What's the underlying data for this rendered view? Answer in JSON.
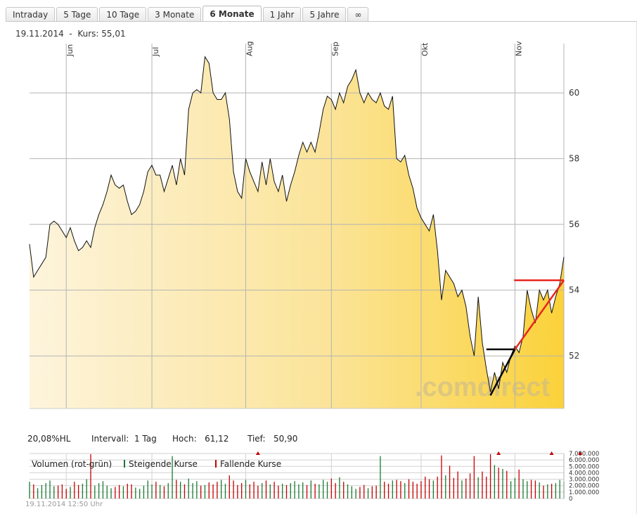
{
  "tabs": [
    "Intraday",
    "5 Tage",
    "10 Tage",
    "3 Monate",
    "6 Monate",
    "1 Jahr",
    "5 Jahre",
    "∞"
  ],
  "active_tab": "6 Monate",
  "header": {
    "date": "19.11.2014",
    "separator": "-",
    "kurs_label": "Kurs:",
    "kurs_value": "55,01"
  },
  "stats": {
    "range": "20,08%HL",
    "interval_label": "Intervall:",
    "interval_value": "1 Tag",
    "high_label": "Hoch:",
    "high_value": "61,12",
    "low_label": "Tief:",
    "low_value": "50,90"
  },
  "volume_legend": {
    "title": "Volumen (rot-grün)",
    "rising": "Steigende Kurse",
    "falling": "Fallende Kurse"
  },
  "timestamp": "19.11.2014 12:50 Uhr",
  "watermark": ".comdirect",
  "colors": {
    "rising": "#1a7a32",
    "falling": "#c40000",
    "fill_light": "#fdf4dc",
    "fill_dark": "#fbd23a",
    "line": "#111111"
  },
  "chart_data": [
    {
      "type": "area",
      "x": [
        "2014-05-20",
        "2014-05-21",
        "2014-05-22",
        "2014-05-23",
        "2014-05-26",
        "2014-05-27",
        "2014-05-28",
        "2014-05-29",
        "2014-05-30",
        "2014-06-02",
        "2014-06-03",
        "2014-06-04",
        "2014-06-05",
        "2014-06-06",
        "2014-06-09",
        "2014-06-10",
        "2014-06-11",
        "2014-06-12",
        "2014-06-13",
        "2014-06-16",
        "2014-06-17",
        "2014-06-18",
        "2014-06-19",
        "2014-06-20",
        "2014-06-23",
        "2014-06-24",
        "2014-06-25",
        "2014-06-26",
        "2014-06-27",
        "2014-06-30",
        "2014-07-01",
        "2014-07-02",
        "2014-07-03",
        "2014-07-04",
        "2014-07-07",
        "2014-07-08",
        "2014-07-09",
        "2014-07-10",
        "2014-07-11",
        "2014-07-14",
        "2014-07-15",
        "2014-07-16",
        "2014-07-17",
        "2014-07-18",
        "2014-07-21",
        "2014-07-22",
        "2014-07-23",
        "2014-07-24",
        "2014-07-25",
        "2014-07-28",
        "2014-07-29",
        "2014-07-30",
        "2014-07-31",
        "2014-08-01",
        "2014-08-04",
        "2014-08-05",
        "2014-08-06",
        "2014-08-07",
        "2014-08-08",
        "2014-08-11",
        "2014-08-12",
        "2014-08-13",
        "2014-08-14",
        "2014-08-15",
        "2014-08-18",
        "2014-08-19",
        "2014-08-20",
        "2014-08-21",
        "2014-08-22",
        "2014-08-25",
        "2014-08-26",
        "2014-08-27",
        "2014-08-28",
        "2014-08-29",
        "2014-09-01",
        "2014-09-02",
        "2014-09-03",
        "2014-09-04",
        "2014-09-05",
        "2014-09-08",
        "2014-09-09",
        "2014-09-10",
        "2014-09-11",
        "2014-09-12",
        "2014-09-15",
        "2014-09-16",
        "2014-09-17",
        "2014-09-18",
        "2014-09-19",
        "2014-09-22",
        "2014-09-23",
        "2014-09-24",
        "2014-09-25",
        "2014-09-26",
        "2014-09-29",
        "2014-09-30",
        "2014-10-01",
        "2014-10-02",
        "2014-10-03",
        "2014-10-06",
        "2014-10-07",
        "2014-10-08",
        "2014-10-09",
        "2014-10-10",
        "2014-10-13",
        "2014-10-14",
        "2014-10-15",
        "2014-10-16",
        "2014-10-17",
        "2014-10-20",
        "2014-10-21",
        "2014-10-22",
        "2014-10-23",
        "2014-10-24",
        "2014-10-27",
        "2014-10-28",
        "2014-10-29",
        "2014-10-30",
        "2014-10-31",
        "2014-11-03",
        "2014-11-04",
        "2014-11-05",
        "2014-11-06",
        "2014-11-07",
        "2014-11-10",
        "2014-11-11",
        "2014-11-12",
        "2014-11-13",
        "2014-11-14",
        "2014-11-17",
        "2014-11-18",
        "2014-11-19"
      ],
      "y": [
        55.4,
        54.4,
        54.6,
        54.8,
        55.0,
        56.0,
        56.1,
        56.0,
        55.8,
        55.6,
        55.9,
        55.5,
        55.2,
        55.3,
        55.5,
        55.3,
        55.9,
        56.3,
        56.6,
        57.0,
        57.5,
        57.2,
        57.1,
        57.2,
        56.7,
        56.3,
        56.4,
        56.6,
        57.0,
        57.6,
        57.8,
        57.5,
        57.5,
        57.0,
        57.4,
        57.8,
        57.2,
        58.0,
        57.5,
        59.5,
        60.0,
        60.1,
        60.0,
        61.1,
        60.9,
        60.0,
        59.8,
        59.8,
        60.0,
        59.2,
        57.6,
        57.0,
        56.8,
        58.0,
        57.6,
        57.3,
        57.0,
        57.9,
        57.2,
        58.0,
        57.3,
        57.0,
        57.5,
        56.7,
        57.2,
        57.6,
        58.1,
        58.5,
        58.2,
        58.5,
        58.2,
        58.8,
        59.5,
        59.9,
        59.8,
        59.5,
        60.0,
        59.7,
        60.2,
        60.4,
        60.7,
        60.0,
        59.7,
        60.0,
        59.8,
        59.7,
        60.0,
        59.6,
        59.5,
        59.9,
        58.0,
        57.9,
        58.1,
        57.5,
        57.1,
        56.5,
        56.2,
        56.0,
        55.8,
        56.3,
        55.2,
        53.7,
        54.6,
        54.4,
        54.2,
        53.8,
        54.0,
        53.5,
        52.6,
        52.0,
        53.8,
        52.4,
        51.6,
        50.9,
        51.5,
        51.0,
        51.8,
        51.5,
        52.0,
        52.3,
        52.1,
        52.6,
        54.0,
        53.4,
        53.0,
        54.0,
        53.7,
        54.0,
        53.3,
        53.8,
        54.2,
        55.01
      ],
      "ylim": [
        50.4,
        61.5
      ],
      "y_ticks": [
        52,
        54,
        56,
        58,
        60
      ],
      "month_labels": [
        {
          "date": "2014-06-02",
          "label": "Jun"
        },
        {
          "date": "2014-07-01",
          "label": "Jul"
        },
        {
          "date": "2014-08-01",
          "label": "Aug"
        },
        {
          "date": "2014-09-01",
          "label": "Sep"
        },
        {
          "date": "2014-10-01",
          "label": "Okt"
        },
        {
          "date": "2014-11-03",
          "label": "Nov"
        }
      ]
    },
    {
      "type": "bar",
      "ylim": [
        0,
        7000000
      ],
      "y_ticks": [
        "0",
        "1.000.000",
        "2.000.000",
        "3.000.000",
        "4.000.000",
        "5.000.000",
        "6.000.000",
        "7.000.000"
      ],
      "volumes": [
        2600000,
        2200000,
        1600000,
        2100000,
        2400000,
        2800000,
        1900000,
        2000000,
        2200000,
        1500000,
        1800000,
        2600000,
        2100000,
        2300000,
        3000000,
        6900000,
        2000000,
        2400000,
        2700000,
        2000000,
        1600000,
        1800000,
        2100000,
        1900000,
        2300000,
        2200000,
        1700000,
        1500000,
        2000000,
        2800000,
        2200000,
        2600000,
        2100000,
        1900000,
        2400000,
        6600000,
        2900000,
        2600000,
        2200000,
        3100000,
        2400000,
        2700000,
        2000000,
        2100000,
        2500000,
        2200000,
        2600000,
        2900000,
        2300000,
        3600000,
        2800000,
        2100000,
        2400000,
        2900000,
        2200000,
        2600000,
        2000000,
        2400000,
        2800000,
        2200000,
        2600000,
        2000000,
        2300000,
        2100000,
        2400000,
        2700000,
        2200000,
        2500000,
        2100000,
        2800000,
        2300000,
        2200000,
        2900000,
        2600000,
        3100000,
        2400000,
        3300000,
        2600000,
        2200000,
        1900000,
        1500000,
        1800000,
        2100000,
        1600000,
        1900000,
        2000000,
        6600000,
        2600000,
        2300000,
        2800000,
        2900000,
        2700000,
        2400000,
        3000000,
        2600000,
        2300000,
        2700000,
        3400000,
        3000000,
        2800000,
        3400000,
        6700000,
        3600000,
        5100000,
        3200000,
        4200000,
        2800000,
        3100000,
        3900000,
        6600000,
        3300000,
        4200000,
        3400000,
        6900000,
        5200000,
        4800000,
        4600000,
        4300000,
        2700000,
        3200000,
        4500000,
        3000000,
        2700000,
        2900000,
        2800000,
        2500000,
        2000000,
        2200000,
        2300000,
        2400000,
        2900000,
        2600000
      ],
      "arrows_at": [
        56,
        115,
        128,
        135
      ]
    }
  ]
}
